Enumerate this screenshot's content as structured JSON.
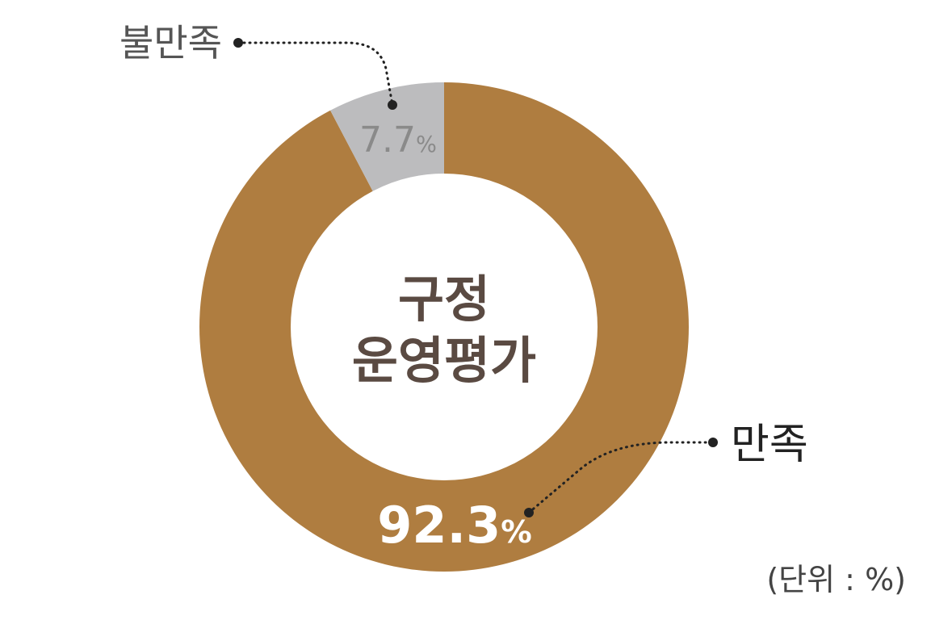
{
  "chart_data": {
    "type": "pie",
    "title": "구정 운영평가",
    "title_lines": [
      "구정",
      "운영평가"
    ],
    "categories": [
      "만족",
      "불만족"
    ],
    "values": [
      92.3,
      7.7
    ],
    "value_labels": [
      "92.3",
      "7.7"
    ],
    "percent_sign": "%",
    "unit_note": "(단위 : %)",
    "colors": [
      "#af7d40",
      "#bcbcbe"
    ],
    "donut": true,
    "start_angle": "12 o'clock",
    "direction": "clockwise"
  }
}
